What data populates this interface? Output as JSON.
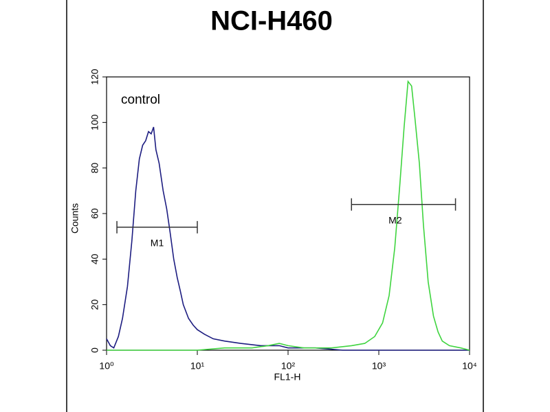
{
  "chart_data": {
    "type": "histogram-line",
    "title": "NCI-H460",
    "xlabel": "FL1-H",
    "ylabel": "Counts",
    "xscale": "log",
    "xlim": [
      1,
      10000
    ],
    "ylim": [
      0,
      120
    ],
    "xticks": [
      {
        "value": 1,
        "label": "10⁰"
      },
      {
        "value": 10,
        "label": "10¹"
      },
      {
        "value": 100,
        "label": "10²"
      },
      {
        "value": 1000,
        "label": "10³"
      },
      {
        "value": 10000,
        "label": "10⁴"
      }
    ],
    "yticks": [
      0,
      20,
      40,
      60,
      80,
      100,
      120
    ],
    "series": [
      {
        "name": "control",
        "color": "#1c1c80",
        "x": [
          1,
          1.1,
          1.2,
          1.35,
          1.5,
          1.7,
          1.9,
          2.1,
          2.3,
          2.5,
          2.7,
          2.9,
          3.1,
          3.3,
          3.5,
          3.8,
          4.2,
          4.6,
          5,
          5.5,
          6,
          6.5,
          7,
          8,
          9,
          10,
          12,
          15,
          20,
          30,
          50,
          80,
          100,
          150,
          200,
          400,
          1000,
          3000,
          10000
        ],
        "values": [
          5,
          2,
          1,
          6,
          14,
          28,
          48,
          70,
          84,
          90,
          92,
          96,
          95,
          98,
          88,
          82,
          70,
          62,
          52,
          40,
          32,
          26,
          20,
          14,
          11,
          9,
          7,
          5,
          4,
          3,
          2,
          2,
          1,
          1,
          1,
          0,
          0,
          0,
          0
        ]
      },
      {
        "color": "#3ed43e",
        "x": [
          1,
          5,
          10,
          20,
          40,
          60,
          80,
          100,
          150,
          200,
          300,
          500,
          700,
          900,
          1100,
          1300,
          1500,
          1700,
          1900,
          2100,
          2300,
          2500,
          2800,
          3100,
          3500,
          4000,
          4500,
          5000,
          6000,
          8000,
          10000
        ],
        "values": [
          0,
          0,
          0,
          1,
          1,
          2,
          3,
          2,
          1,
          1,
          1,
          2,
          3,
          6,
          12,
          24,
          45,
          72,
          98,
          118,
          116,
          102,
          82,
          55,
          30,
          15,
          8,
          4,
          2,
          1,
          0
        ]
      }
    ],
    "markers": [
      {
        "label": "M1",
        "x": [
          1.3,
          10
        ],
        "y": 54
      },
      {
        "label": "M2",
        "x": [
          500,
          7000
        ],
        "y": 64
      }
    ]
  }
}
